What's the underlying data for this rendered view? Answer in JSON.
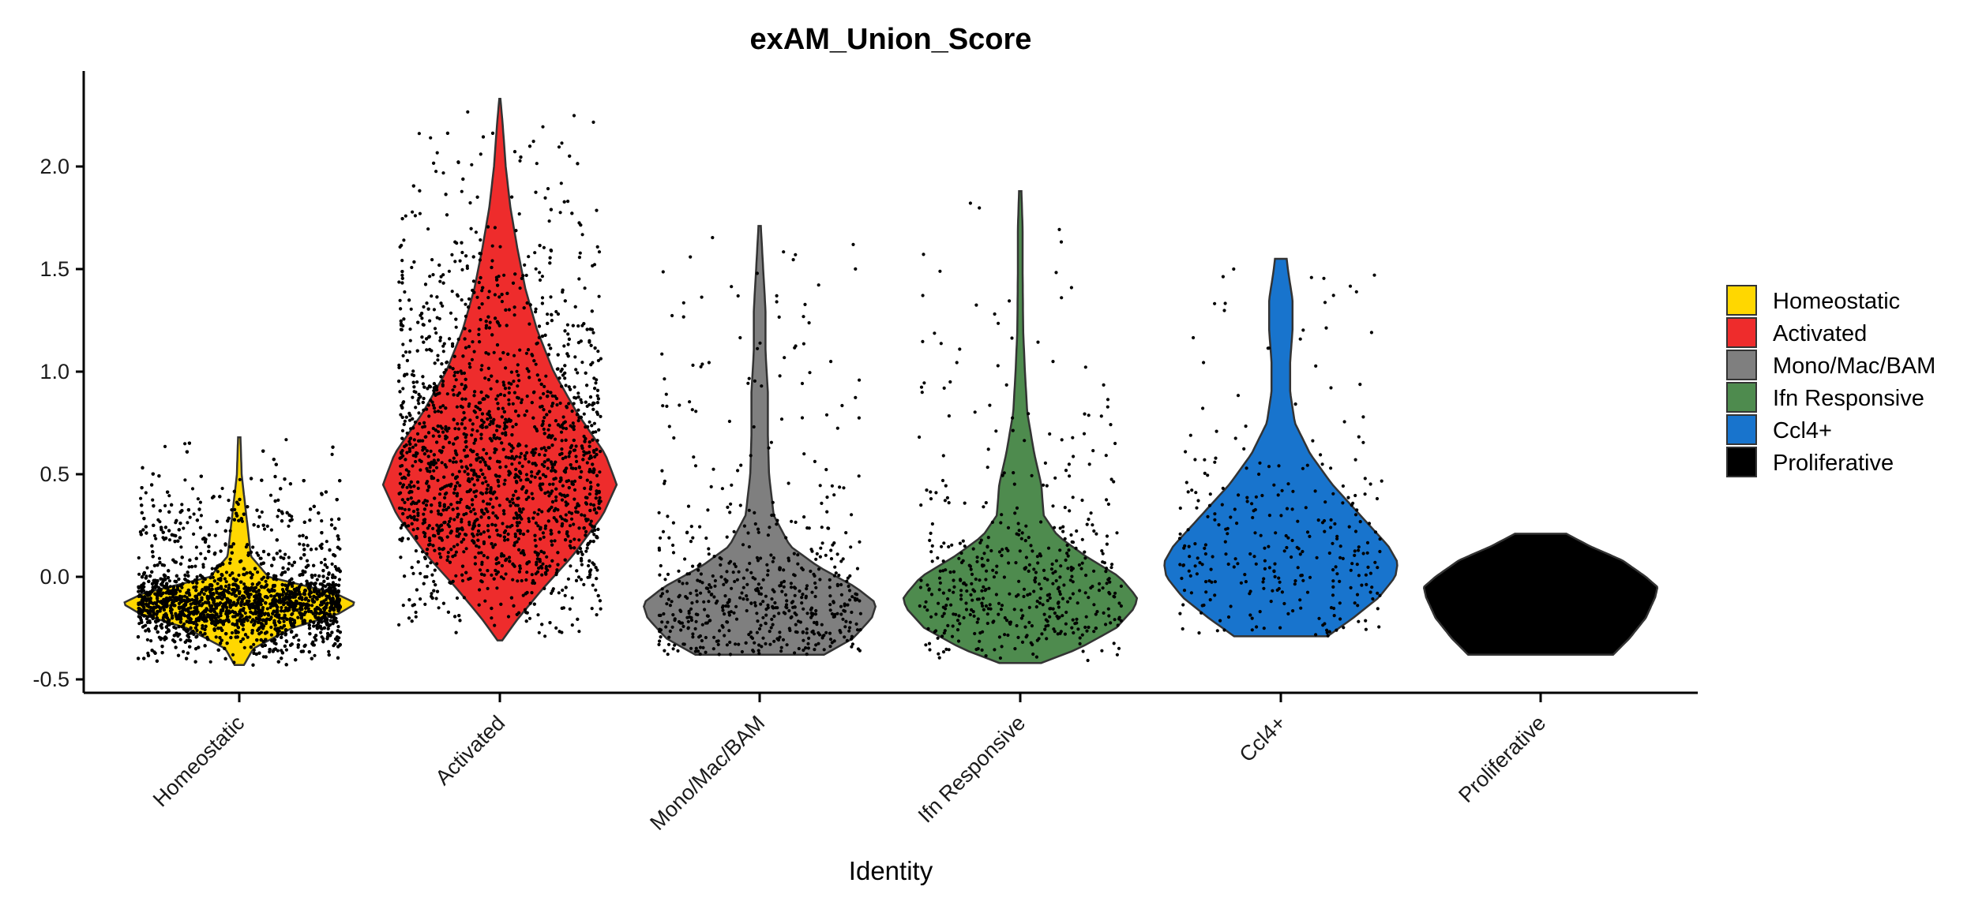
{
  "chart_data": {
    "type": "violin",
    "title": "exAM_Union_Score",
    "xlabel": "Identity",
    "ylabel": "",
    "ylim": [
      -0.57,
      2.45
    ],
    "yticks": [
      "2.0",
      "1.5",
      "1.0",
      "0.5",
      "0.0",
      "-0.5"
    ],
    "ytick_values": [
      2.0,
      1.5,
      1.0,
      0.5,
      0.0,
      -0.5
    ],
    "categories": [
      "Homeostatic",
      "Activated",
      "Mono/Mac/BAM",
      "Ifn Responsive",
      "Ccl4+",
      "Proliferative"
    ],
    "colors": [
      "#FFD700",
      "#EE2C2C",
      "#7F7F7F",
      "#4E8B4E",
      "#1874CD",
      "#000000"
    ],
    "legend": {
      "position": "right",
      "entries": [
        "Homeostatic",
        "Activated",
        "Mono/Mac/BAM",
        "Ifn Responsive",
        "Ccl4+",
        "Proliferative"
      ]
    },
    "grid": false,
    "series": [
      {
        "name": "Homeostatic",
        "min": -0.43,
        "max": 0.68,
        "mode": -0.13,
        "points_approx": 8000,
        "density": [
          [
            -0.43,
            0.04
          ],
          [
            -0.35,
            0.12
          ],
          [
            -0.25,
            0.45
          ],
          [
            -0.18,
            0.85
          ],
          [
            -0.13,
            1.0
          ],
          [
            -0.08,
            0.82
          ],
          [
            0.0,
            0.25
          ],
          [
            0.1,
            0.1
          ],
          [
            0.2,
            0.08
          ],
          [
            0.3,
            0.06
          ],
          [
            0.4,
            0.04
          ],
          [
            0.5,
            0.02
          ],
          [
            0.6,
            0.015
          ],
          [
            0.68,
            0.01
          ]
        ]
      },
      {
        "name": "Activated",
        "min": -0.31,
        "max": 2.33,
        "mode": 0.45,
        "points_approx": 2500,
        "density": [
          [
            -0.31,
            0.02
          ],
          [
            -0.2,
            0.16
          ],
          [
            -0.05,
            0.38
          ],
          [
            0.1,
            0.62
          ],
          [
            0.3,
            0.88
          ],
          [
            0.45,
            1.0
          ],
          [
            0.6,
            0.9
          ],
          [
            0.8,
            0.66
          ],
          [
            1.0,
            0.46
          ],
          [
            1.2,
            0.32
          ],
          [
            1.4,
            0.22
          ],
          [
            1.6,
            0.15
          ],
          [
            1.8,
            0.09
          ],
          [
            2.0,
            0.05
          ],
          [
            2.2,
            0.025
          ],
          [
            2.33,
            0.005
          ]
        ]
      },
      {
        "name": "Mono/Mac/BAM",
        "min": -0.38,
        "max": 1.71,
        "mode": -0.13,
        "points_approx": 600,
        "density": [
          [
            -0.38,
            0.55
          ],
          [
            -0.3,
            0.8
          ],
          [
            -0.2,
            0.96
          ],
          [
            -0.13,
            1.0
          ],
          [
            -0.05,
            0.82
          ],
          [
            0.05,
            0.5
          ],
          [
            0.15,
            0.26
          ],
          [
            0.3,
            0.12
          ],
          [
            0.5,
            0.08
          ],
          [
            0.7,
            0.07
          ],
          [
            0.9,
            0.07
          ],
          [
            1.1,
            0.05
          ],
          [
            1.3,
            0.05
          ],
          [
            1.5,
            0.03
          ],
          [
            1.71,
            0.01
          ]
        ]
      },
      {
        "name": "Ifn Responsive",
        "min": -0.42,
        "max": 1.88,
        "mode": -0.13,
        "points_approx": 500,
        "density": [
          [
            -0.42,
            0.18
          ],
          [
            -0.35,
            0.5
          ],
          [
            -0.25,
            0.82
          ],
          [
            -0.15,
            0.98
          ],
          [
            -0.1,
            1.0
          ],
          [
            0.0,
            0.85
          ],
          [
            0.1,
            0.56
          ],
          [
            0.2,
            0.32
          ],
          [
            0.3,
            0.2
          ],
          [
            0.45,
            0.18
          ],
          [
            0.6,
            0.12
          ],
          [
            0.8,
            0.06
          ],
          [
            1.0,
            0.04
          ],
          [
            1.2,
            0.025
          ],
          [
            1.5,
            0.02
          ],
          [
            1.7,
            0.02
          ],
          [
            1.88,
            0.01
          ]
        ]
      },
      {
        "name": "Ccl4+",
        "min": -0.29,
        "max": 1.55,
        "mode": 0.07,
        "points_approx": 300,
        "density": [
          [
            -0.29,
            0.4
          ],
          [
            -0.2,
            0.62
          ],
          [
            -0.1,
            0.84
          ],
          [
            0.0,
            0.98
          ],
          [
            0.07,
            1.0
          ],
          [
            0.15,
            0.92
          ],
          [
            0.3,
            0.68
          ],
          [
            0.45,
            0.44
          ],
          [
            0.6,
            0.25
          ],
          [
            0.75,
            0.12
          ],
          [
            0.9,
            0.08
          ],
          [
            1.05,
            0.08
          ],
          [
            1.2,
            0.1
          ],
          [
            1.35,
            0.1
          ],
          [
            1.5,
            0.06
          ],
          [
            1.55,
            0.05
          ]
        ]
      },
      {
        "name": "Proliferative",
        "min": -0.38,
        "max": 0.21,
        "mode": -0.08,
        "points_approx": 3,
        "density": [
          [
            -0.38,
            0.62
          ],
          [
            -0.3,
            0.76
          ],
          [
            -0.2,
            0.9
          ],
          [
            -0.1,
            0.98
          ],
          [
            -0.05,
            1.0
          ],
          [
            0.0,
            0.9
          ],
          [
            0.08,
            0.7
          ],
          [
            0.15,
            0.42
          ],
          [
            0.21,
            0.22
          ]
        ]
      }
    ]
  }
}
